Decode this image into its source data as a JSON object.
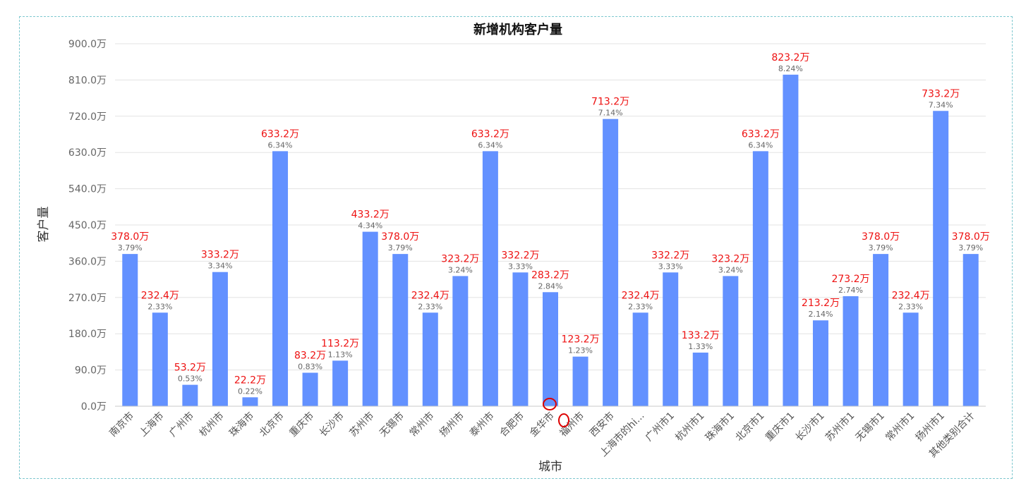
{
  "chart_data": {
    "type": "bar",
    "title": "新增机构客户量",
    "xlabel": "城市",
    "ylabel": "客户量",
    "ylim": [
      0,
      900
    ],
    "yticks": [
      "0.0万",
      "90.0万",
      "180.0万",
      "270.0万",
      "360.0万",
      "450.0万",
      "540.0万",
      "630.0万",
      "720.0万",
      "810.0万",
      "900.0万"
    ],
    "grid": true,
    "bar_color": "#6391ff",
    "value_label_color": "#ee1111",
    "categories": [
      "南京市",
      "上海市",
      "广州市",
      "杭州市",
      "珠海市",
      "北京市",
      "重庆市",
      "长沙市",
      "苏州市",
      "无锡市",
      "常州市",
      "扬州市",
      "泰州市",
      "合肥市",
      "金华市",
      "福州市",
      "西安市",
      "上海市的hi...",
      "广州市1",
      "杭州市1",
      "珠海市1",
      "北京市1",
      "重庆市1",
      "长沙市1",
      "苏州市1",
      "无锡市1",
      "常州市1",
      "扬州市1",
      "其他类别合计"
    ],
    "values": [
      378.0,
      232.4,
      53.2,
      333.2,
      22.2,
      633.2,
      83.2,
      113.2,
      433.2,
      378.0,
      232.4,
      323.2,
      633.2,
      332.2,
      283.2,
      123.2,
      713.2,
      232.4,
      332.2,
      133.2,
      323.2,
      633.2,
      823.2,
      213.2,
      273.2,
      378.0,
      232.4,
      733.2,
      378.0
    ],
    "value_labels": [
      "378.0万",
      "232.4万",
      "53.2万",
      "333.2万",
      "22.2万",
      "633.2万",
      "83.2万",
      "113.2万",
      "433.2万",
      "378.0万",
      "232.4万",
      "323.2万",
      "633.2万",
      "332.2万",
      "283.2万",
      "123.2万",
      "713.2万",
      "232.4万",
      "332.2万",
      "133.2万",
      "323.2万",
      "633.2万",
      "823.2万",
      "213.2万",
      "273.2万",
      "378.0万",
      "232.4万",
      "733.2万",
      "378.0万"
    ],
    "percent_labels": [
      "3.79%",
      "2.33%",
      "0.53%",
      "3.34%",
      "0.22%",
      "6.34%",
      "0.83%",
      "1.13%",
      "4.34%",
      "3.79%",
      "2.33%",
      "3.24%",
      "6.34%",
      "3.33%",
      "2.84%",
      "1.23%",
      "7.14%",
      "2.33%",
      "3.33%",
      "1.33%",
      "3.24%",
      "6.34%",
      "8.24%",
      "2.14%",
      "2.74%",
      "3.79%",
      "2.33%",
      "7.34%",
      "3.79%"
    ],
    "annotations": {
      "markers": "red circles",
      "color": "#dd0000"
    }
  }
}
